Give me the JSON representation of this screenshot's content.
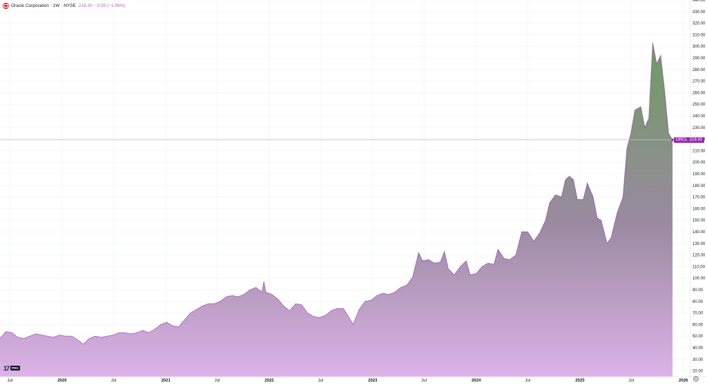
{
  "header": {
    "title": "Oracle Corporation · 1W · NYSE",
    "price": "219.30",
    "change": "−3.55 (−1.59%)",
    "logo_icon": "oracle-logo-icon"
  },
  "price_tag": {
    "symbol": "ORCL",
    "value": "219.30"
  },
  "branding": {
    "mark": "17",
    "badge": "PRO"
  },
  "colors": {
    "accent": "#9c27b0",
    "header_change": "#b05fc4",
    "logo_bg": "#e0262b",
    "area_top_green": "#6a9e5c",
    "area_mid_grey": "#9a8aa0",
    "area_bottom_lilac": "#dcb2e8",
    "line": "#8e24aa",
    "grid": "#eef0f3",
    "price_line": "#bfc3cc"
  },
  "chart_data": {
    "type": "area",
    "title": "",
    "xlabel": "",
    "ylabel": "",
    "grid": true,
    "legend": "none",
    "ylim": [
      15,
      340
    ],
    "xlim": [
      "2019-05-27",
      "2026-01-26"
    ],
    "y_ticks": [
      "20.00",
      "30.00",
      "40.00",
      "50.00",
      "60.00",
      "70.00",
      "80.00",
      "90.00",
      "100.00",
      "110.00",
      "120.00",
      "130.00",
      "140.00",
      "150.00",
      "160.00",
      "170.00",
      "180.00",
      "190.00",
      "200.00",
      "210.00",
      "220.00",
      "230.00",
      "240.00",
      "250.00",
      "260.00",
      "270.00",
      "280.00",
      "290.00",
      "300.00",
      "310.00",
      "320.00",
      "330.00",
      "340.00"
    ],
    "x_ticks": [
      {
        "label": "Jul",
        "date": "2019-07-01",
        "year": false
      },
      {
        "label": "2020",
        "date": "2020-01-01",
        "year": true
      },
      {
        "label": "Jul",
        "date": "2020-07-01",
        "year": false
      },
      {
        "label": "2021",
        "date": "2021-01-01",
        "year": true
      },
      {
        "label": "Jul",
        "date": "2021-07-01",
        "year": false
      },
      {
        "label": "2022",
        "date": "2022-01-01",
        "year": true
      },
      {
        "label": "Jul",
        "date": "2022-07-01",
        "year": false
      },
      {
        "label": "2023",
        "date": "2023-01-01",
        "year": true
      },
      {
        "label": "Jul",
        "date": "2023-07-01",
        "year": false
      },
      {
        "label": "2024",
        "date": "2024-01-01",
        "year": true
      },
      {
        "label": "Jul",
        "date": "2024-07-01",
        "year": false
      },
      {
        "label": "2025",
        "date": "2025-01-01",
        "year": true
      },
      {
        "label": "Jul",
        "date": "2025-07-01",
        "year": false
      },
      {
        "label": "2026",
        "date": "2026-01-01",
        "year": true
      }
    ],
    "last_value": 219.3,
    "series": [
      {
        "points": [
          [
            "2019-05-27",
            48
          ],
          [
            "2019-06-17",
            54
          ],
          [
            "2019-07-08",
            53
          ],
          [
            "2019-07-29",
            49
          ],
          [
            "2019-08-19",
            48
          ],
          [
            "2019-09-09",
            50
          ],
          [
            "2019-09-30",
            52
          ],
          [
            "2019-10-21",
            51
          ],
          [
            "2019-11-11",
            50
          ],
          [
            "2019-12-02",
            49
          ],
          [
            "2019-12-23",
            51
          ],
          [
            "2020-01-13",
            50
          ],
          [
            "2020-02-03",
            50
          ],
          [
            "2020-02-24",
            47
          ],
          [
            "2020-03-16",
            43
          ],
          [
            "2020-04-06",
            48
          ],
          [
            "2020-04-27",
            50
          ],
          [
            "2020-05-18",
            49
          ],
          [
            "2020-06-08",
            50
          ],
          [
            "2020-06-29",
            51
          ],
          [
            "2020-07-20",
            53
          ],
          [
            "2020-08-10",
            53
          ],
          [
            "2020-08-31",
            52
          ],
          [
            "2020-09-21",
            53
          ],
          [
            "2020-10-12",
            55
          ],
          [
            "2020-11-02",
            53
          ],
          [
            "2020-11-23",
            56
          ],
          [
            "2020-12-14",
            60
          ],
          [
            "2021-01-04",
            62
          ],
          [
            "2021-01-25",
            59
          ],
          [
            "2021-02-15",
            58
          ],
          [
            "2021-03-08",
            64
          ],
          [
            "2021-03-29",
            70
          ],
          [
            "2021-04-19",
            73
          ],
          [
            "2021-05-10",
            76
          ],
          [
            "2021-05-31",
            78
          ],
          [
            "2021-06-21",
            78
          ],
          [
            "2021-07-12",
            80
          ],
          [
            "2021-08-02",
            84
          ],
          [
            "2021-08-23",
            85
          ],
          [
            "2021-09-13",
            84
          ],
          [
            "2021-10-04",
            86
          ],
          [
            "2021-10-25",
            90
          ],
          [
            "2021-11-15",
            92
          ],
          [
            "2021-12-06",
            88
          ],
          [
            "2021-12-13",
            97
          ],
          [
            "2021-12-20",
            88
          ],
          [
            "2022-01-10",
            86
          ],
          [
            "2022-01-31",
            82
          ],
          [
            "2022-02-21",
            76
          ],
          [
            "2022-03-14",
            72
          ],
          [
            "2022-04-04",
            78
          ],
          [
            "2022-04-25",
            77
          ],
          [
            "2022-05-16",
            70
          ],
          [
            "2022-06-06",
            67
          ],
          [
            "2022-06-27",
            66
          ],
          [
            "2022-07-18",
            68
          ],
          [
            "2022-08-08",
            72
          ],
          [
            "2022-08-29",
            74
          ],
          [
            "2022-09-19",
            74
          ],
          [
            "2022-10-10",
            66
          ],
          [
            "2022-10-24",
            60
          ],
          [
            "2022-11-14",
            73
          ],
          [
            "2022-12-05",
            80
          ],
          [
            "2022-12-26",
            81
          ],
          [
            "2023-01-16",
            85
          ],
          [
            "2023-02-06",
            87
          ],
          [
            "2023-02-27",
            86
          ],
          [
            "2023-03-20",
            88
          ],
          [
            "2023-04-10",
            92
          ],
          [
            "2023-05-01",
            94
          ],
          [
            "2023-05-22",
            101
          ],
          [
            "2023-06-12",
            122
          ],
          [
            "2023-06-26",
            115
          ],
          [
            "2023-07-17",
            116
          ],
          [
            "2023-08-07",
            113
          ],
          [
            "2023-08-28",
            114
          ],
          [
            "2023-09-11",
            123
          ],
          [
            "2023-09-25",
            108
          ],
          [
            "2023-10-16",
            103
          ],
          [
            "2023-11-06",
            110
          ],
          [
            "2023-11-27",
            115
          ],
          [
            "2023-12-11",
            103
          ],
          [
            "2024-01-01",
            104
          ],
          [
            "2024-01-22",
            110
          ],
          [
            "2024-02-12",
            113
          ],
          [
            "2024-03-04",
            112
          ],
          [
            "2024-03-18",
            125
          ],
          [
            "2024-04-08",
            117
          ],
          [
            "2024-04-29",
            116
          ],
          [
            "2024-05-20",
            120
          ],
          [
            "2024-06-10",
            140
          ],
          [
            "2024-07-01",
            140
          ],
          [
            "2024-07-22",
            132
          ],
          [
            "2024-08-12",
            139
          ],
          [
            "2024-09-02",
            150
          ],
          [
            "2024-09-16",
            165
          ],
          [
            "2024-10-07",
            172
          ],
          [
            "2024-10-28",
            170
          ],
          [
            "2024-11-11",
            185
          ],
          [
            "2024-11-25",
            188
          ],
          [
            "2024-12-09",
            185
          ],
          [
            "2024-12-23",
            168
          ],
          [
            "2025-01-13",
            168
          ],
          [
            "2025-01-27",
            182
          ],
          [
            "2025-02-17",
            170
          ],
          [
            "2025-03-03",
            152
          ],
          [
            "2025-03-17",
            150
          ],
          [
            "2025-04-07",
            130
          ],
          [
            "2025-04-21",
            135
          ],
          [
            "2025-05-12",
            156
          ],
          [
            "2025-06-02",
            170
          ],
          [
            "2025-06-16",
            212
          ],
          [
            "2025-06-30",
            225
          ],
          [
            "2025-07-14",
            245
          ],
          [
            "2025-08-04",
            248
          ],
          [
            "2025-08-18",
            230
          ],
          [
            "2025-09-01",
            238
          ],
          [
            "2025-09-15",
            303
          ],
          [
            "2025-09-29",
            285
          ],
          [
            "2025-10-13",
            292
          ],
          [
            "2025-10-27",
            262
          ],
          [
            "2025-11-10",
            225
          ],
          [
            "2025-11-24",
            219.3
          ]
        ]
      }
    ]
  }
}
